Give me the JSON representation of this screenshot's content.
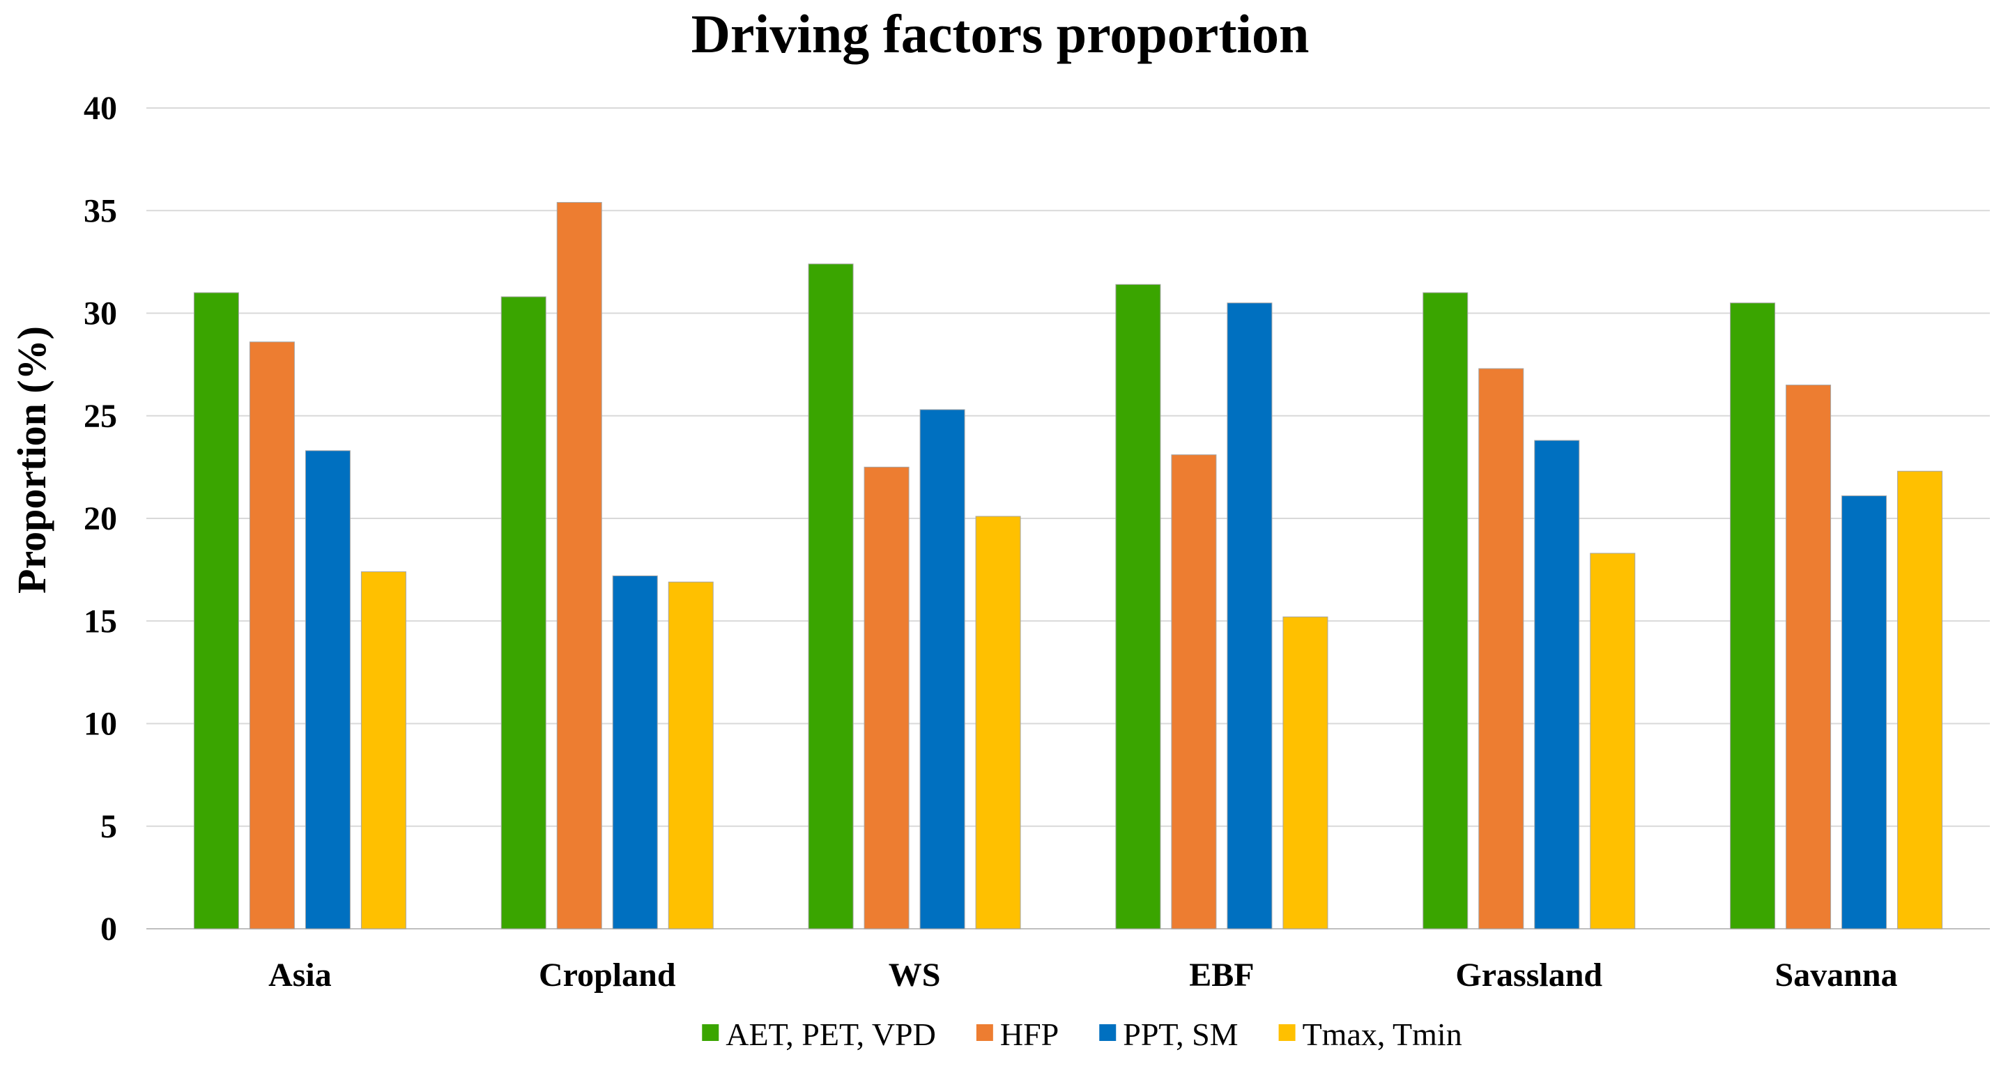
{
  "chart_data": {
    "type": "bar",
    "title": "Driving factors proportion",
    "xlabel": "",
    "ylabel": "Proportion (%)",
    "ylim": [
      0,
      40
    ],
    "yticks": [
      0,
      5,
      10,
      15,
      20,
      25,
      30,
      35,
      40
    ],
    "grid": true,
    "legend_position": "bottom",
    "categories": [
      "Asia",
      "Cropland",
      "WS",
      "EBF",
      "Grassland",
      "Savanna"
    ],
    "series": [
      {
        "name": "AET, PET, VPD",
        "color": "#3aa500",
        "values": [
          31.0,
          30.8,
          32.4,
          31.4,
          31.0,
          30.5
        ]
      },
      {
        "name": "HFP",
        "color": "#ed7d31",
        "values": [
          28.6,
          35.4,
          22.5,
          23.1,
          27.3,
          26.5
        ]
      },
      {
        "name": "PPT, SM",
        "color": "#0070c0",
        "values": [
          23.3,
          17.2,
          25.3,
          30.5,
          23.8,
          21.1
        ]
      },
      {
        "name": "Tmax, Tmin",
        "color": "#ffc000",
        "values": [
          17.4,
          16.9,
          20.1,
          15.2,
          18.3,
          22.3
        ]
      }
    ]
  }
}
